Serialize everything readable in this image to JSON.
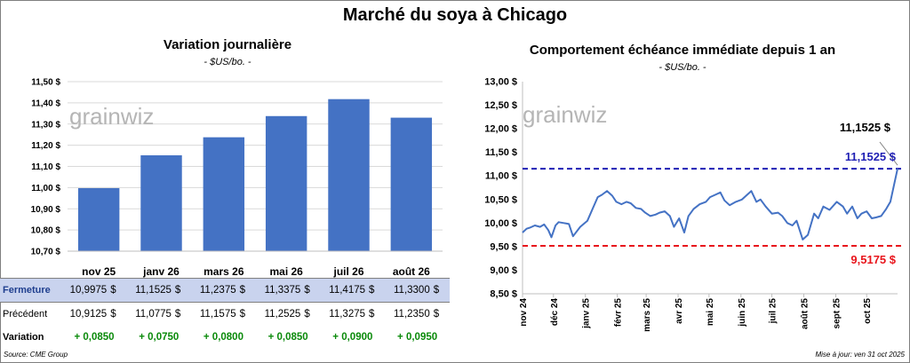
{
  "title": "Marché du soya à Chicago",
  "watermark": "grainwiz",
  "left": {
    "title": "Variation journalière",
    "subtitle": "- $US/bo. -",
    "ytick_labels": [
      "10,70 $",
      "10,80 $",
      "10,90 $",
      "11,00 $",
      "11,10 $",
      "11,20 $",
      "11,30 $",
      "11,40 $",
      "11,50 $"
    ],
    "table": {
      "rows": [
        {
          "label": "Fermeture",
          "values": [
            "10,9975",
            "11,1525",
            "11,2375",
            "11,3375",
            "11,4175",
            "11,3300"
          ],
          "currency": "$"
        },
        {
          "label": "Précédent",
          "values": [
            "10,9125",
            "11,0775",
            "11,1575",
            "11,2525",
            "11,3275",
            "11,2350"
          ],
          "currency": "$"
        },
        {
          "label": "Variation",
          "values": [
            "+ 0,0850",
            "+ 0,0750",
            "+ 0,0800",
            "+ 0,0850",
            "+ 0,0900",
            "+ 0,0950"
          ]
        }
      ]
    }
  },
  "right": {
    "title": "Comportement échéance immédiate depuis 1 an",
    "subtitle": "- $US/bo. -",
    "ytick_labels": [
      "8,50 $",
      "9,00 $",
      "9,50 $",
      "10,00 $",
      "10,50 $",
      "11,00 $",
      "11,50 $",
      "12,00 $",
      "12,50 $",
      "13,00 $"
    ],
    "xtick_labels": [
      "nov 24",
      "déc 24",
      "janv 25",
      "févr 25",
      "mars 25",
      "avr 25",
      "mai 25",
      "juin 25",
      "juil 25",
      "août 25",
      "sept 25",
      "oct 25"
    ],
    "last_value_label": "11,1525 $",
    "high_line_label": "11,1525 $",
    "low_line_label": "9,5175 $"
  },
  "footer": {
    "source": "Source: CME Group",
    "update": "Mise à jour: ven 31 oct 2025"
  },
  "colors": {
    "bar": "#4472c4",
    "line": "#4472c4",
    "high_line": "#1f1fb4",
    "low_line": "#e8141b",
    "positive": "#0a8a0a",
    "table_highlight": "#c9d3ee"
  },
  "chart_data": [
    {
      "type": "bar",
      "title": "Variation journalière",
      "ylabel": "$US/bo.",
      "categories": [
        "nov 25",
        "janv 26",
        "mars 26",
        "mai 26",
        "juil 26",
        "août 26"
      ],
      "values": [
        10.9975,
        11.1525,
        11.2375,
        11.3375,
        11.4175,
        11.33
      ],
      "ylim": [
        10.7,
        11.5
      ],
      "grid": true
    },
    {
      "type": "line",
      "title": "Comportement échéance immédiate depuis 1 an",
      "ylabel": "$US/bo.",
      "ylim": [
        8.5,
        13.0
      ],
      "x": [
        "2024-11-01",
        "2024-11-05",
        "2024-11-08",
        "2024-11-13",
        "2024-11-18",
        "2024-11-22",
        "2024-11-26",
        "2024-11-29",
        "2024-12-03",
        "2024-12-06",
        "2024-12-11",
        "2024-12-16",
        "2024-12-20",
        "2024-12-27",
        "2025-01-03",
        "2025-01-08",
        "2025-01-13",
        "2025-01-17",
        "2025-01-22",
        "2025-01-27",
        "2025-01-31",
        "2025-02-05",
        "2025-02-10",
        "2025-02-14",
        "2025-02-19",
        "2025-02-24",
        "2025-02-28",
        "2025-03-05",
        "2025-03-10",
        "2025-03-14",
        "2025-03-19",
        "2025-03-24",
        "2025-03-28",
        "2025-04-02",
        "2025-04-07",
        "2025-04-11",
        "2025-04-16",
        "2025-04-22",
        "2025-04-28",
        "2025-05-02",
        "2025-05-07",
        "2025-05-12",
        "2025-05-16",
        "2025-05-21",
        "2025-05-27",
        "2025-06-02",
        "2025-06-06",
        "2025-06-11",
        "2025-06-16",
        "2025-06-20",
        "2025-06-25",
        "2025-07-01",
        "2025-07-07",
        "2025-07-11",
        "2025-07-16",
        "2025-07-21",
        "2025-07-25",
        "2025-07-31",
        "2025-08-05",
        "2025-08-11",
        "2025-08-15",
        "2025-08-20",
        "2025-08-26",
        "2025-09-02",
        "2025-09-08",
        "2025-09-12",
        "2025-09-17",
        "2025-09-22",
        "2025-09-26",
        "2025-10-01",
        "2025-10-06",
        "2025-10-10",
        "2025-10-15",
        "2025-10-20",
        "2025-10-24",
        "2025-10-28",
        "2025-10-31"
      ],
      "values": [
        9.8,
        9.88,
        9.9,
        9.95,
        9.92,
        9.97,
        9.85,
        9.7,
        9.95,
        10.02,
        10.0,
        9.98,
        9.72,
        9.92,
        10.05,
        10.3,
        10.55,
        10.6,
        10.68,
        10.58,
        10.45,
        10.4,
        10.45,
        10.42,
        10.32,
        10.3,
        10.22,
        10.15,
        10.18,
        10.22,
        10.25,
        10.15,
        9.92,
        10.1,
        9.8,
        10.15,
        10.3,
        10.4,
        10.45,
        10.55,
        10.6,
        10.65,
        10.48,
        10.38,
        10.45,
        10.5,
        10.58,
        10.68,
        10.45,
        10.5,
        10.35,
        10.2,
        10.22,
        10.15,
        10.0,
        9.95,
        10.05,
        9.65,
        9.75,
        10.2,
        10.1,
        10.35,
        10.28,
        10.45,
        10.35,
        10.2,
        10.35,
        10.1,
        10.2,
        10.25,
        10.1,
        10.12,
        10.15,
        10.3,
        10.45,
        10.85,
        11.1525
      ],
      "hlines": [
        {
          "value": 11.1525,
          "color": "#1f1fb4"
        },
        {
          "value": 9.5175,
          "color": "#e8141b"
        }
      ],
      "grid": true
    }
  ]
}
